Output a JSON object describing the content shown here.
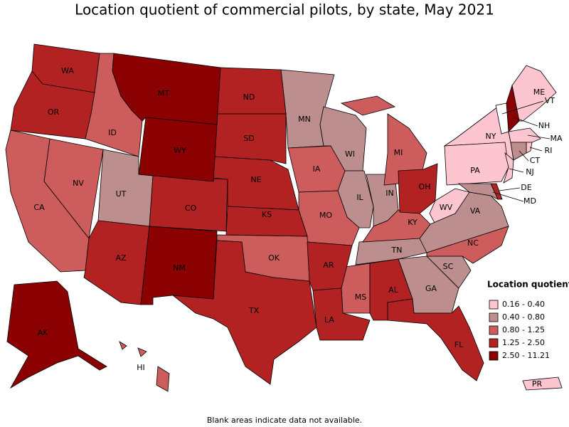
{
  "map": {
    "title": "Location quotient of commercial pilots, by state, May 2021",
    "footnote": "Blank areas indicate data not available.",
    "legend": {
      "title": "Location quotient",
      "items": [
        {
          "label": "0.16 - 0.40",
          "color": "#fcc5cf",
          "states": [
            "ME",
            "NY",
            "PA",
            "NJ",
            "WV",
            "MA",
            "RI",
            "PR"
          ]
        },
        {
          "label": "0.40 - 0.80",
          "color": "#bc8e8e",
          "states": [
            "MN",
            "WI",
            "IL",
            "IN",
            "UT",
            "TN",
            "GA",
            "SC",
            "VA",
            "MD",
            "CT"
          ]
        },
        {
          "label": "0.80 - 1.25",
          "color": "#cd5c5c",
          "states": [
            "ID",
            "NV",
            "CA",
            "IA",
            "MO",
            "OK",
            "MS",
            "MI",
            "KY",
            "NC",
            "HI"
          ]
        },
        {
          "label": "1.25 - 2.50",
          "color": "#b22222",
          "states": [
            "WA",
            "OR",
            "ND",
            "SD",
            "NE",
            "KS",
            "CO",
            "AZ",
            "TX",
            "AR",
            "LA",
            "AL",
            "FL",
            "OH",
            "DE"
          ]
        },
        {
          "label": "2.50 - 11.21",
          "color": "#8b0000",
          "states": [
            "MT",
            "WY",
            "NM",
            "AK",
            "NH"
          ]
        }
      ]
    },
    "no_data_states": [
      "VT"
    ]
  }
}
